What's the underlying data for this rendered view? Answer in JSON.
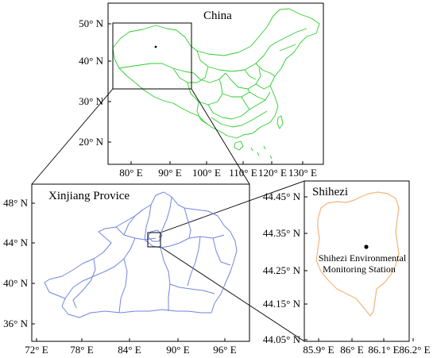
{
  "china_map": {
    "title": "China",
    "lat_ticks": [
      "50° N",
      "40° N",
      "30° N",
      "20° N"
    ],
    "lon_ticks": [
      "80° E",
      "90° E",
      "100° E",
      "110° E",
      "120° E",
      "130° E"
    ],
    "border_color": "#2ecc2e"
  },
  "xinjiang_map": {
    "title": "Xinjiang Provice",
    "lat_ticks": [
      "48° N",
      "44° N",
      "40° N",
      "36° N"
    ],
    "lon_ticks": [
      "72° E",
      "78° E",
      "84° E",
      "90° E",
      "96° E"
    ],
    "border_color": "#6f86e0"
  },
  "shihezi_map": {
    "title": "Shihezi",
    "lat_ticks": [
      "44.45° N",
      "44.35° N",
      "44.25° N",
      "44.15° N",
      "44.05° N"
    ],
    "lon_ticks": [
      "85.9° E",
      "86° E",
      "86.1° E",
      "86.2° E"
    ],
    "station_label_line1": "Shihezi Environmental",
    "station_label_line2": "Monitoring Station",
    "boundary_color": "#f3b57a"
  }
}
